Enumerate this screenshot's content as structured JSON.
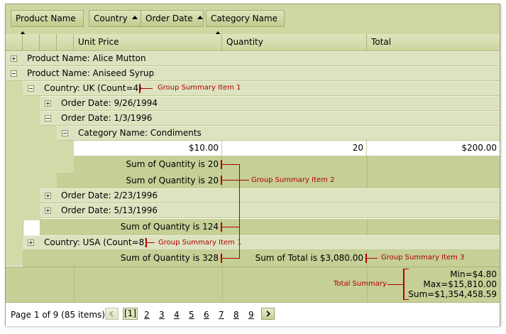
{
  "group_panel": {
    "buttons": [
      {
        "label": "Product Name"
      },
      {
        "label": "Country"
      },
      {
        "label": "Order Date"
      },
      {
        "label": "Category Name"
      }
    ]
  },
  "columns": {
    "unit_price": "Unit Price",
    "quantity": "Quantity",
    "total": "Total"
  },
  "rows": {
    "product1": "Product Name: Alice Mutton",
    "product2": "Product Name: Aniseed Syrup",
    "country_uk": "Country: UK (Count=4)",
    "order1": "Order Date: 9/26/1994",
    "order2": "Order Date: 1/3/1996",
    "category": "Category Name: Condiments",
    "data_price": "$10.00",
    "data_qty": "20",
    "data_total": "$200.00",
    "sum_cat": "Sum of Quantity is 20",
    "sum_order": "Sum of Quantity is 20",
    "order3": "Order Date: 2/23/1996",
    "order4": "Order Date: 5/13/1996",
    "sum_uk": "Sum of Quantity is 124",
    "country_usa": "Country: USA (Count=8)",
    "sum_product_qty": "Sum of Quantity is 328",
    "sum_product_total": "Sum of Total is $3,080.00"
  },
  "footer": {
    "min": "Min=$4.80",
    "max": "Max=$15,810.00",
    "sum": "Sum=$1,354,458.59"
  },
  "annotations": {
    "gsi1a": "Group Summary Item 1",
    "gsi2": "Group Summary Item 2",
    "gsi1b": "Group Summary Item 1",
    "gsi3": "Group Summary Item 3",
    "total_summary": "Total Summary"
  },
  "pager": {
    "info": "Page 1 of 9 (85 items)",
    "current": "[1]",
    "pages": [
      "2",
      "3",
      "4",
      "5",
      "6",
      "7",
      "8",
      "9"
    ],
    "prev_icon": "chevron-left-icon",
    "next_icon": "chevron-right-icon"
  },
  "colors": {
    "panel": "#cfd7a3",
    "summary_row": "#c5cf96",
    "annotation": "#b00000"
  }
}
